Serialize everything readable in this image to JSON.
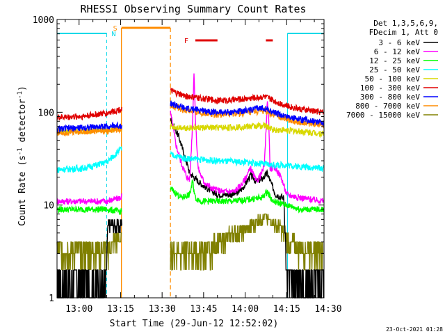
{
  "chart_data": {
    "type": "line",
    "title": "RHESSI Observing Summary Count Rates",
    "xlabel": "Start Time (29-Jun-12 12:52:02)",
    "ylabel_main": "Count Rate (s",
    "ylabel_sup1": "-1",
    "ylabel_mid": " detector",
    "ylabel_sup2": "-1",
    "ylabel_end": ")",
    "ylog": true,
    "ylim": [
      1,
      1000
    ],
    "xlim_min": [
      52.03,
      148.5
    ],
    "x_ticks": [
      {
        "m": 60,
        "label": "13:00"
      },
      {
        "m": 75,
        "label": "13:15"
      },
      {
        "m": 90,
        "label": "13:30"
      },
      {
        "m": 105,
        "label": "13:45"
      },
      {
        "m": 120,
        "label": "14:00"
      },
      {
        "m": 135,
        "label": "14:15"
      },
      {
        "m": 150,
        "label": "14:30"
      }
    ],
    "y_ticks": [
      {
        "v": 1,
        "label": "1"
      },
      {
        "v": 10,
        "label": "10"
      },
      {
        "v": 100,
        "label": "100"
      },
      {
        "v": 1000,
        "label": "1000"
      }
    ],
    "legend_header": [
      "Det 1,3,5,6,9,",
      "FDecim 1, Att 0"
    ],
    "legend_position": "right",
    "timestamp": "23-Oct-2021 01:28",
    "flags": [
      {
        "letter": "N",
        "color": "#00d8e8"
      },
      {
        "letter": "S",
        "color": "#ff8c00"
      },
      {
        "letter": "F",
        "color": "#e00000"
      }
    ],
    "intervals": {
      "night": [
        [
          52.03,
          70.0
        ],
        [
          135.3,
          148.5
        ]
      ],
      "saa": [
        [
          75.3,
          93.0
        ]
      ],
      "flare": [
        [
          102.0,
          110.0
        ],
        [
          127.5,
          130.0
        ]
      ]
    },
    "segments": [
      [
        52.03,
        75.5
      ],
      [
        93.0,
        148.5
      ]
    ],
    "series": [
      {
        "name": "3 - 6 keV",
        "color": "#000000",
        "points": [
          [
            52.03,
            1.5
          ],
          [
            69.5,
            1.5
          ],
          [
            70.5,
            6
          ],
          [
            75,
            6
          ],
          [
            93,
            85
          ],
          [
            96,
            55
          ],
          [
            98,
            35
          ],
          [
            100,
            22
          ],
          [
            104,
            17
          ],
          [
            108,
            14
          ],
          [
            110,
            13
          ],
          [
            116,
            13
          ],
          [
            119,
            15
          ],
          [
            122,
            21
          ],
          [
            124,
            18
          ],
          [
            126,
            19
          ],
          [
            128,
            22
          ],
          [
            131,
            13
          ],
          [
            134,
            12
          ],
          [
            135,
            2
          ],
          [
            137,
            1.5
          ],
          [
            148.5,
            1.5
          ]
        ]
      },
      {
        "name": "6 - 12 keV",
        "color": "#ff00ff",
        "points": [
          [
            52.03,
            11
          ],
          [
            70,
            11
          ],
          [
            75,
            12
          ],
          [
            93,
            100
          ],
          [
            95,
            45
          ],
          [
            97,
            28
          ],
          [
            99,
            20
          ],
          [
            100,
            19
          ],
          [
            101,
            75
          ],
          [
            101.5,
            280
          ],
          [
            102,
            90
          ],
          [
            103,
            25
          ],
          [
            105,
            18
          ],
          [
            108,
            15
          ],
          [
            112,
            14
          ],
          [
            116,
            14
          ],
          [
            119,
            17
          ],
          [
            122,
            25
          ],
          [
            124,
            18
          ],
          [
            126,
            22
          ],
          [
            127,
            28
          ],
          [
            128,
            130
          ],
          [
            128.5,
            90
          ],
          [
            129,
            25
          ],
          [
            131,
            25
          ],
          [
            133,
            20
          ],
          [
            135,
            13
          ],
          [
            140,
            12
          ],
          [
            148.5,
            11
          ]
        ]
      },
      {
        "name": "12 - 25 keV",
        "color": "#00ff00",
        "points": [
          [
            52.03,
            9
          ],
          [
            70,
            9
          ],
          [
            75,
            8.5
          ],
          [
            93,
            15
          ],
          [
            97,
            12
          ],
          [
            100,
            13
          ],
          [
            101,
            18
          ],
          [
            102,
            12
          ],
          [
            104,
            11
          ],
          [
            116,
            11
          ],
          [
            126,
            12
          ],
          [
            128,
            14
          ],
          [
            130,
            11
          ],
          [
            135,
            10
          ],
          [
            140,
            9
          ],
          [
            148.5,
            9
          ]
        ]
      },
      {
        "name": "25 - 50 keV",
        "color": "#00ffff",
        "points": [
          [
            52.03,
            24
          ],
          [
            62,
            25
          ],
          [
            70,
            29
          ],
          [
            75,
            40
          ],
          [
            93,
            35
          ],
          [
            98,
            32
          ],
          [
            110,
            30
          ],
          [
            120,
            29
          ],
          [
            130,
            27
          ],
          [
            135,
            27
          ],
          [
            140,
            26
          ],
          [
            148.5,
            25
          ]
        ]
      },
      {
        "name": "50 - 100 keV",
        "color": "#d8d800",
        "points": [
          [
            52.03,
            63
          ],
          [
            70,
            64
          ],
          [
            75,
            67
          ],
          [
            93,
            70
          ],
          [
            100,
            68
          ],
          [
            110,
            68
          ],
          [
            120,
            70
          ],
          [
            127,
            72
          ],
          [
            130,
            65
          ],
          [
            135,
            64
          ],
          [
            148.5,
            59
          ]
        ]
      },
      {
        "name": "100 - 300 keV",
        "color": "#e00000",
        "points": [
          [
            52.03,
            88
          ],
          [
            60,
            90
          ],
          [
            70,
            98
          ],
          [
            75,
            108
          ],
          [
            93,
            170
          ],
          [
            98,
            150
          ],
          [
            105,
            140
          ],
          [
            110,
            135
          ],
          [
            115,
            135
          ],
          [
            120,
            140
          ],
          [
            127,
            148
          ],
          [
            130,
            135
          ],
          [
            135,
            118
          ],
          [
            140,
            108
          ],
          [
            148.5,
            100
          ]
        ]
      },
      {
        "name": "300 - 800 keV",
        "color": "#0000ff",
        "points": [
          [
            52.03,
            66
          ],
          [
            60,
            68
          ],
          [
            70,
            71
          ],
          [
            75,
            72
          ],
          [
            93,
            125
          ],
          [
            98,
            110
          ],
          [
            105,
            105
          ],
          [
            110,
            100
          ],
          [
            115,
            100
          ],
          [
            120,
            105
          ],
          [
            127,
            112
          ],
          [
            130,
            100
          ],
          [
            135,
            90
          ],
          [
            140,
            84
          ],
          [
            148.5,
            78
          ]
        ]
      },
      {
        "name": "800 - 7000 keV",
        "color": "#ff8c00",
        "points": [
          [
            52.03,
            60
          ],
          [
            60,
            62
          ],
          [
            70,
            63
          ],
          [
            75,
            66
          ],
          [
            93,
            120
          ],
          [
            98,
            105
          ],
          [
            105,
            98
          ],
          [
            110,
            95
          ],
          [
            115,
            95
          ],
          [
            120,
            98
          ],
          [
            127,
            104
          ],
          [
            130,
            94
          ],
          [
            135,
            84
          ],
          [
            140,
            78
          ],
          [
            148.5,
            73
          ]
        ]
      },
      {
        "name": "7000 - 15000 keV",
        "color": "#808000",
        "points": [
          [
            52.03,
            3.2
          ],
          [
            70,
            3.3
          ],
          [
            75,
            4.5
          ],
          [
            93,
            3.2
          ],
          [
            98,
            3.2
          ],
          [
            102,
            3.2
          ],
          [
            104,
            2.8
          ],
          [
            108,
            3.5
          ],
          [
            112,
            4.2
          ],
          [
            116,
            4.8
          ],
          [
            120,
            5.5
          ],
          [
            124,
            6.5
          ],
          [
            127,
            7.5
          ],
          [
            130,
            6.5
          ],
          [
            133,
            5.5
          ],
          [
            135,
            4.2
          ],
          [
            140,
            3.4
          ],
          [
            148.5,
            3.3
          ]
        ]
      }
    ]
  }
}
